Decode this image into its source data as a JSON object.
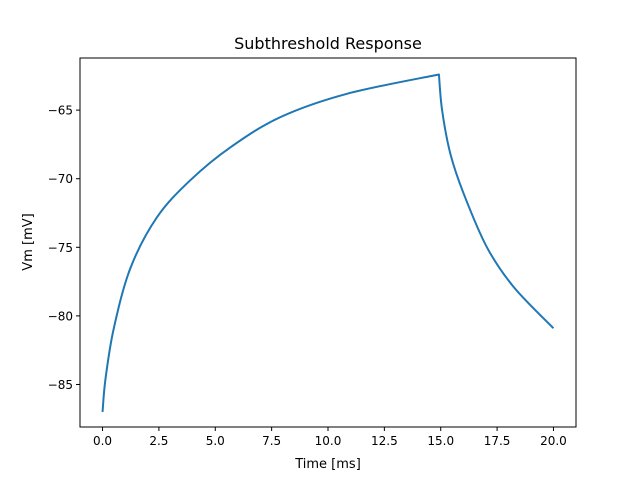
{
  "chart_data": {
    "type": "line",
    "title": "Subthreshold Response",
    "xlabel": "Time [ms]",
    "ylabel": "Vm [mV]",
    "xlim": [
      -1,
      21
    ],
    "ylim": [
      -88.1,
      -61.2
    ],
    "grid": false,
    "x_ticks": [
      0,
      2.5,
      5,
      7.5,
      10,
      12.5,
      15,
      17.5,
      20
    ],
    "x_tick_labels": [
      "0.0",
      "2.5",
      "5.0",
      "7.5",
      "10.0",
      "12.5",
      "15.0",
      "17.5",
      "20.0"
    ],
    "y_ticks": [
      -65,
      -70,
      -75,
      -80,
      -85
    ],
    "y_tick_labels": [
      "−65",
      "−70",
      "−75",
      "−80",
      "−85"
    ],
    "series": [
      {
        "name": "Vm",
        "color": "#1f77b4",
        "x": [
          0,
          0.13,
          0.5,
          1.24,
          2.42,
          3.9,
          5.68,
          7.9,
          10.86,
          14.92,
          15.06,
          15.43,
          16.02,
          17.05,
          18.24,
          20.0
        ],
        "y": [
          -87.0,
          -84.6,
          -80.9,
          -76.5,
          -72.8,
          -70.1,
          -67.7,
          -65.5,
          -63.8,
          -62.4,
          -65.0,
          -68.2,
          -71.1,
          -75.0,
          -77.9,
          -80.9
        ]
      }
    ]
  }
}
